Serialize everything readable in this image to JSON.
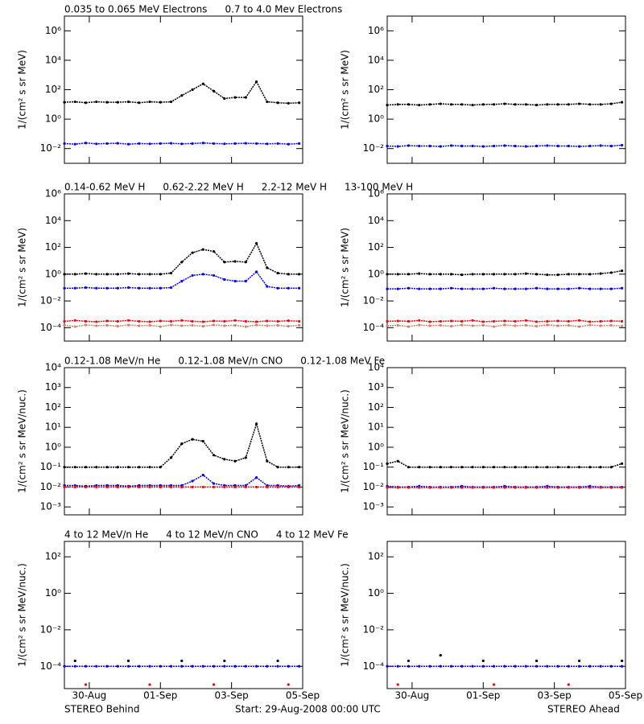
{
  "time_axis": {
    "xlim": [
      0.3,
      7.0
    ],
    "xticks": [
      {
        "value": 1,
        "label": "30-Aug"
      },
      {
        "value": 3,
        "label": "01-Sep"
      },
      {
        "value": 5,
        "label": "03-Sep"
      },
      {
        "value": 7,
        "label": "05-Sep"
      }
    ],
    "x": [
      0.3,
      0.6,
      0.9,
      1.2,
      1.5,
      1.8,
      2.1,
      2.4,
      2.7,
      3.0,
      3.3,
      3.6,
      3.9,
      4.2,
      4.5,
      4.8,
      5.1,
      5.4,
      5.7,
      6.0,
      6.3,
      6.6,
      6.9
    ]
  },
  "footer": {
    "left": "STEREO Behind",
    "center": "Start: 29-Aug-2008 00:00 UTC",
    "right": "STEREO Ahead"
  },
  "chart_data": [
    {
      "type": "scatter",
      "log_y": true,
      "y_label": "1/(cm² s sr MeV)",
      "ylim": [
        0.001,
        10000000
      ],
      "yticks": [
        {
          "value": 0.01,
          "label": "10⁻²"
        },
        {
          "value": 1,
          "label": "10⁰"
        },
        {
          "value": 100,
          "label": "10²"
        },
        {
          "value": 10000,
          "label": "10⁴"
        },
        {
          "value": 1000000,
          "label": "10⁶"
        }
      ],
      "series": [
        {
          "name": "0.035 to 0.065 MeV Electrons",
          "color": "#000000",
          "values": [
            14,
            15,
            13,
            15,
            14,
            14,
            15,
            13,
            15,
            14,
            15,
            40,
            100,
            250,
            80,
            25,
            30,
            30,
            350,
            15,
            13,
            12,
            13
          ]
        },
        {
          "name": "0.7 to 4.0 Mev Electrons",
          "color": "#0000ff",
          "values": [
            0.022,
            0.02,
            0.024,
            0.021,
            0.022,
            0.023,
            0.02,
            0.022,
            0.021,
            0.022,
            0.023,
            0.021,
            0.022,
            0.024,
            0.022,
            0.021,
            0.022,
            0.023,
            0.022,
            0.021,
            0.022,
            0.02,
            0.022
          ]
        }
      ],
      "ahead": [
        {
          "color": "#000000",
          "values": [
            9,
            10,
            10,
            9,
            10,
            11,
            10,
            10,
            9,
            10,
            10,
            11,
            10,
            10,
            9,
            10,
            10,
            10,
            11,
            10,
            10,
            11,
            14
          ]
        },
        {
          "color": "#0000ff",
          "values": [
            0.015,
            0.014,
            0.016,
            0.015,
            0.015,
            0.014,
            0.016,
            0.015,
            0.015,
            0.014,
            0.015,
            0.016,
            0.015,
            0.014,
            0.015,
            0.016,
            0.015,
            0.015,
            0.014,
            0.015,
            0.016,
            0.015,
            0.017
          ]
        }
      ]
    },
    {
      "type": "scatter",
      "log_y": true,
      "y_label": "1/(cm² s sr MeV)",
      "ylim": [
        1e-05,
        1000000
      ],
      "yticks": [
        {
          "value": 0.0001,
          "label": "10⁻⁴"
        },
        {
          "value": 0.01,
          "label": "10⁻²"
        },
        {
          "value": 1,
          "label": "10⁰"
        },
        {
          "value": 100,
          "label": "10²"
        },
        {
          "value": 10000,
          "label": "10⁴"
        },
        {
          "value": 1000000,
          "label": "10⁶"
        }
      ],
      "series": [
        {
          "name": "0.14-0.62 MeV H",
          "color": "#000000",
          "values": [
            1,
            1,
            1.1,
            1,
            1,
            1,
            1.1,
            1,
            1,
            1,
            1.2,
            8,
            40,
            70,
            50,
            8,
            9,
            8,
            200,
            3,
            1.2,
            1,
            1
          ]
        },
        {
          "name": "0.62-2.22 MeV H",
          "color": "#0000ff",
          "values": [
            0.09,
            0.09,
            0.1,
            0.09,
            0.09,
            0.09,
            0.1,
            0.09,
            0.09,
            0.09,
            0.1,
            0.3,
            0.8,
            1,
            0.8,
            0.4,
            0.3,
            0.3,
            1.5,
            0.12,
            0.09,
            0.09,
            0.09
          ]
        },
        {
          "name": "2.2-12 MeV H",
          "color": "#c8866a",
          "values": [
            0.00015,
            0.00012,
            0.00016,
            0.00014,
            0.00015,
            0.00013,
            0.00016,
            0.00014,
            0.00015,
            0.00012,
            0.00016,
            0.00014,
            0.00015,
            0.00013,
            0.00016,
            0.00014,
            0.00015,
            0.00012,
            0.00016,
            0.00014,
            0.00015,
            0.00013,
            0.00015
          ]
        },
        {
          "name": "13-100 MeV H",
          "color": "#ff0000",
          "values": [
            0.0003,
            0.00035,
            0.0003,
            0.00028,
            0.00032,
            0.0003,
            0.00035,
            0.0003,
            0.00028,
            0.00032,
            0.0003,
            0.00035,
            0.0003,
            0.00028,
            0.00032,
            0.0003,
            0.00035,
            0.0003,
            0.00028,
            0.00032,
            0.0003,
            0.00033,
            0.0003
          ]
        }
      ],
      "ahead": [
        {
          "color": "#000000",
          "values": [
            1,
            1,
            1,
            1.1,
            1,
            1,
            1,
            0.9,
            1,
            1,
            1,
            1,
            1,
            1.1,
            1,
            0.9,
            0.9,
            1,
            1,
            1,
            1.1,
            1.3,
            1.8
          ]
        },
        {
          "color": "#0000ff",
          "values": [
            0.08,
            0.08,
            0.09,
            0.08,
            0.08,
            0.08,
            0.09,
            0.08,
            0.08,
            0.08,
            0.09,
            0.08,
            0.08,
            0.08,
            0.09,
            0.08,
            0.08,
            0.08,
            0.09,
            0.08,
            0.08,
            0.08,
            0.09
          ]
        },
        {
          "color": "#c8866a",
          "values": [
            0.00014,
            0.00015,
            0.00012,
            0.00016,
            0.00014,
            0.00015,
            0.00013,
            0.00016,
            0.00014,
            0.00015,
            0.00012,
            0.00016,
            0.00014,
            0.00015,
            0.00013,
            0.00016,
            0.00014,
            0.00015,
            0.00012,
            0.00016,
            0.00014,
            0.00015,
            0.00013
          ]
        },
        {
          "color": "#ff0000",
          "values": [
            0.0003,
            0.00032,
            0.0003,
            0.00035,
            0.00028,
            0.0003,
            0.00032,
            0.0003,
            0.00035,
            0.00028,
            0.0003,
            0.00032,
            0.0003,
            0.00035,
            0.00028,
            0.0003,
            0.00032,
            0.0003,
            0.00035,
            0.00028,
            0.0003,
            0.00032,
            0.0003
          ]
        }
      ]
    },
    {
      "type": "scatter",
      "log_y": true,
      "y_label": "1/(cm² s sr MeV/nuc.)",
      "ylim": [
        0.0004,
        10000
      ],
      "yticks": [
        {
          "value": 0.001,
          "label": "10⁻³"
        },
        {
          "value": 0.01,
          "label": "10⁻²"
        },
        {
          "value": 0.1,
          "label": "10⁻¹"
        },
        {
          "value": 1,
          "label": "10⁰"
        },
        {
          "value": 10,
          "label": "10¹"
        },
        {
          "value": 100,
          "label": "10²"
        },
        {
          "value": 1000,
          "label": "10³"
        },
        {
          "value": 10000,
          "label": "10⁴"
        }
      ],
      "series": [
        {
          "name": "0.12-1.08 MeV/n He",
          "color": "#000000",
          "values": [
            0.1,
            0.1,
            0.1,
            0.1,
            0.1,
            0.1,
            0.1,
            0.1,
            0.1,
            0.1,
            0.3,
            1.5,
            2.5,
            2,
            0.4,
            0.25,
            0.2,
            0.3,
            15,
            0.2,
            0.1,
            0.1,
            0.1
          ]
        },
        {
          "name": "0.12-1.08 MeV/n CNO",
          "color": "#0000ff",
          "values": [
            0.012,
            0.012,
            0.011,
            0.012,
            0.012,
            0.012,
            0.011,
            0.012,
            0.012,
            0.012,
            0.012,
            0.012,
            0.02,
            0.04,
            0.015,
            0.012,
            0.012,
            0.012,
            0.03,
            0.012,
            0.012,
            0.011,
            0.012
          ]
        },
        {
          "name": "0.12-1.08 MeV Fe",
          "color": "#ff0000",
          "values": [
            0.01,
            0.01,
            0.01,
            0.01,
            0.01,
            0.01,
            0.01,
            0.01,
            0.01,
            0.01,
            0.01,
            0.01,
            0.01,
            0.01,
            0.01,
            0.01,
            0.01,
            0.01,
            0.01,
            0.01,
            0.01,
            0.01,
            0.01
          ]
        }
      ],
      "ahead": [
        {
          "color": "#000000",
          "values": [
            0.15,
            0.2,
            0.1,
            0.1,
            0.1,
            0.1,
            0.1,
            0.1,
            0.1,
            0.1,
            0.1,
            0.1,
            0.1,
            0.1,
            0.1,
            0.1,
            0.1,
            0.1,
            0.1,
            0.1,
            0.1,
            0.1,
            0.15
          ]
        },
        {
          "color": "#0000ff",
          "values": [
            0.011,
            0.01,
            0.01,
            0.011,
            0.01,
            0.01,
            0.01,
            0.011,
            0.01,
            0.01,
            0.01,
            0.011,
            0.01,
            0.01,
            0.01,
            0.011,
            0.01,
            0.01,
            0.01,
            0.011,
            0.01,
            0.01,
            0.01
          ]
        },
        {
          "color": "#ff0000",
          "values": [
            0.0095,
            0.0095,
            0.0095,
            0.0095,
            0.0095,
            0.0095,
            0.0095,
            0.0095,
            0.0095,
            0.0095,
            0.0095,
            0.0095,
            0.0095,
            0.0095,
            0.0095,
            0.0095,
            0.0095,
            0.0095,
            0.0095,
            0.0095,
            0.0095,
            0.0095,
            0.0095
          ]
        }
      ]
    },
    {
      "type": "scatter",
      "log_y": true,
      "y_label": "1/(cm² s sr MeV/nuc.)",
      "ylim": [
        6e-06,
        700
      ],
      "yticks": [
        {
          "value": 0.0001,
          "label": "10⁻⁴"
        },
        {
          "value": 0.01,
          "label": "10⁻²"
        },
        {
          "value": 1,
          "label": "10⁰"
        },
        {
          "value": 100,
          "label": "10²"
        }
      ],
      "series": [
        {
          "name": "4 to 12 MeV/n He",
          "color": "#000000",
          "values": [
            null,
            0.0002,
            null,
            null,
            null,
            null,
            0.0002,
            null,
            null,
            null,
            null,
            0.0002,
            null,
            null,
            null,
            0.0002,
            null,
            null,
            null,
            null,
            0.0002,
            null,
            null
          ]
        },
        {
          "name": "4 to 12 MeV/n CNO",
          "color": "#0000ff",
          "values": [
            0.0001,
            0.0001,
            0.0001,
            0.0001,
            0.0001,
            0.0001,
            0.0001,
            0.0001,
            0.0001,
            0.0001,
            0.0001,
            0.0001,
            0.0001,
            0.0001,
            0.0001,
            0.0001,
            0.0001,
            0.0001,
            0.0001,
            0.0001,
            0.0001,
            0.0001,
            0.0001
          ]
        },
        {
          "name": "4 to 12 MeV Fe",
          "color": "#ff0000",
          "values": [
            null,
            null,
            1e-05,
            null,
            null,
            null,
            null,
            null,
            1e-05,
            null,
            null,
            null,
            null,
            null,
            1e-05,
            null,
            null,
            null,
            null,
            null,
            null,
            1e-05,
            null
          ]
        }
      ],
      "ahead": [
        {
          "color": "#000000",
          "values": [
            null,
            null,
            0.0002,
            null,
            null,
            0.0004,
            null,
            null,
            null,
            0.0002,
            null,
            null,
            null,
            null,
            0.0002,
            null,
            null,
            null,
            0.0002,
            null,
            null,
            null,
            0.0002
          ]
        },
        {
          "color": "#0000ff",
          "values": [
            0.0001,
            0.0001,
            0.0001,
            0.0001,
            0.0001,
            0.0001,
            0.0001,
            0.0001,
            0.0001,
            0.0001,
            0.0001,
            0.0001,
            0.0001,
            0.0001,
            0.0001,
            0.0001,
            0.0001,
            0.0001,
            0.0001,
            0.0001,
            0.0001,
            0.0001,
            0.0001
          ]
        },
        {
          "color": "#ff0000",
          "values": [
            null,
            1e-05,
            null,
            null,
            null,
            null,
            null,
            null,
            null,
            null,
            1e-05,
            null,
            null,
            null,
            null,
            null,
            null,
            1e-05,
            null,
            null,
            null,
            null,
            null
          ]
        }
      ]
    }
  ]
}
